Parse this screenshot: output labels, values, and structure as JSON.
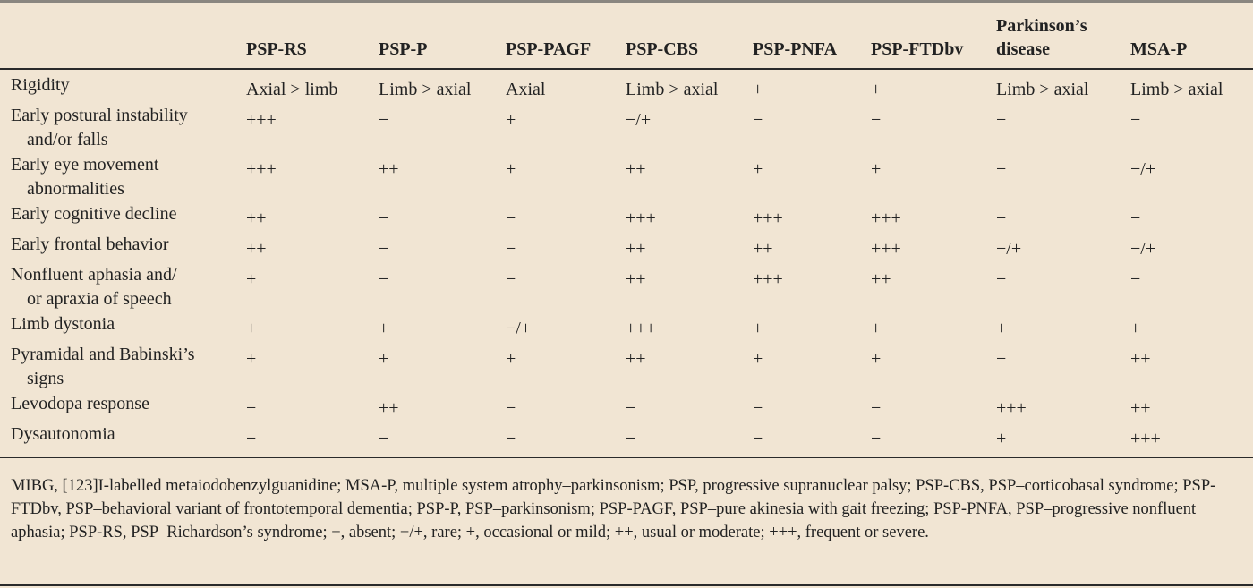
{
  "columns": [
    "PSP-RS",
    "PSP-P",
    "PSP-PAGF",
    "PSP-CBS",
    "PSP-PNFA",
    "PSP-FTDbv",
    "Parkinson’s disease",
    "MSA-P"
  ],
  "rows": [
    {
      "label": [
        "Rigidity"
      ],
      "values": [
        "Axial > limb",
        "Limb > axial",
        "Axial",
        "Limb > axial",
        "+",
        "+",
        "Limb > axial",
        "Limb > axial"
      ]
    },
    {
      "label": [
        "Early postural instability",
        "and/or falls"
      ],
      "values": [
        "+++",
        "−",
        "+",
        "−/+",
        "−",
        "−",
        "−",
        "−"
      ]
    },
    {
      "label": [
        "Early eye movement",
        "abnormalities"
      ],
      "values": [
        "+++",
        "++",
        "+",
        "++",
        "+",
        "+",
        "−",
        "−/+"
      ]
    },
    {
      "label": [
        "Early cognitive decline"
      ],
      "values": [
        "++",
        "−",
        "−",
        "+++",
        "+++",
        "+++",
        "−",
        "−"
      ]
    },
    {
      "label": [
        "Early frontal behavior"
      ],
      "values": [
        "++",
        "−",
        "−",
        "++",
        "++",
        "+++",
        "−/+",
        "−/+"
      ]
    },
    {
      "label": [
        "Nonfluent aphasia and/",
        "or apraxia of speech"
      ],
      "values": [
        "+",
        "−",
        "−",
        "++",
        "+++",
        "++",
        "−",
        "−"
      ]
    },
    {
      "label": [
        "Limb dystonia"
      ],
      "values": [
        "+",
        "+",
        "−/+",
        "+++",
        "+",
        "+",
        "+",
        "+"
      ]
    },
    {
      "label": [
        "Pyramidal and Babinski’s",
        "signs"
      ],
      "values": [
        "+",
        "+",
        "+",
        "++",
        "+",
        "+",
        "−",
        "++"
      ]
    },
    {
      "label": [
        "Levodopa response"
      ],
      "values": [
        "−",
        "++",
        "−",
        "−",
        "−",
        "−",
        "+++",
        "++"
      ]
    },
    {
      "label": [
        "Dysautonomia"
      ],
      "values": [
        "−",
        "−",
        "−",
        "−",
        "−",
        "−",
        "+",
        "+++"
      ]
    }
  ],
  "footnote": "MIBG, [123]I-labelled metaiodobenzylguanidine; MSA-P, multiple system atrophy–parkinsonism; PSP, progressive supranuclear palsy; PSP-CBS, PSP–corticobasal syndrome; PSP-FTDbv, PSP–behavioral variant of frontotemporal dementia; PSP-P, PSP–parkinsonism; PSP-PAGF, PSP–pure akinesia with gait freezing; PSP-PNFA, PSP–progressive nonfluent aphasia; PSP-RS, PSP–Richardson’s syndrome; −, absent; −/+, rare; +, occasional or mild; ++, usual or moderate; +++, frequent or severe."
}
